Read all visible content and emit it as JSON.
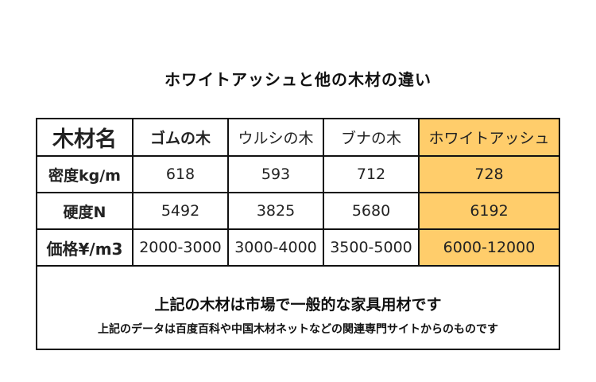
{
  "title": "ホワイトアッシュと他の木材の違い",
  "table": {
    "header": [
      "木材名",
      "ゴムの木",
      "ウルシの木",
      "ブナの木",
      "ホワイトアッシュ"
    ],
    "rows": [
      {
        "label": "密度kg/m",
        "values": [
          "618",
          "593",
          "712",
          "728"
        ]
      },
      {
        "label": "硬度N",
        "values": [
          "5492",
          "3825",
          "5680",
          "6192"
        ]
      },
      {
        "label": "価格¥/m3",
        "values": [
          "2000-3000",
          "3000-4000",
          "3500-5000",
          "6000-12000"
        ]
      }
    ],
    "highlight_color": "#ffcd6b"
  },
  "notes": {
    "line1": "上記の木材は市場で一般的な家具用材です",
    "line2": "上記のデータは百度百科や中国木材ネットなどの関連専門サイトからのものです"
  }
}
